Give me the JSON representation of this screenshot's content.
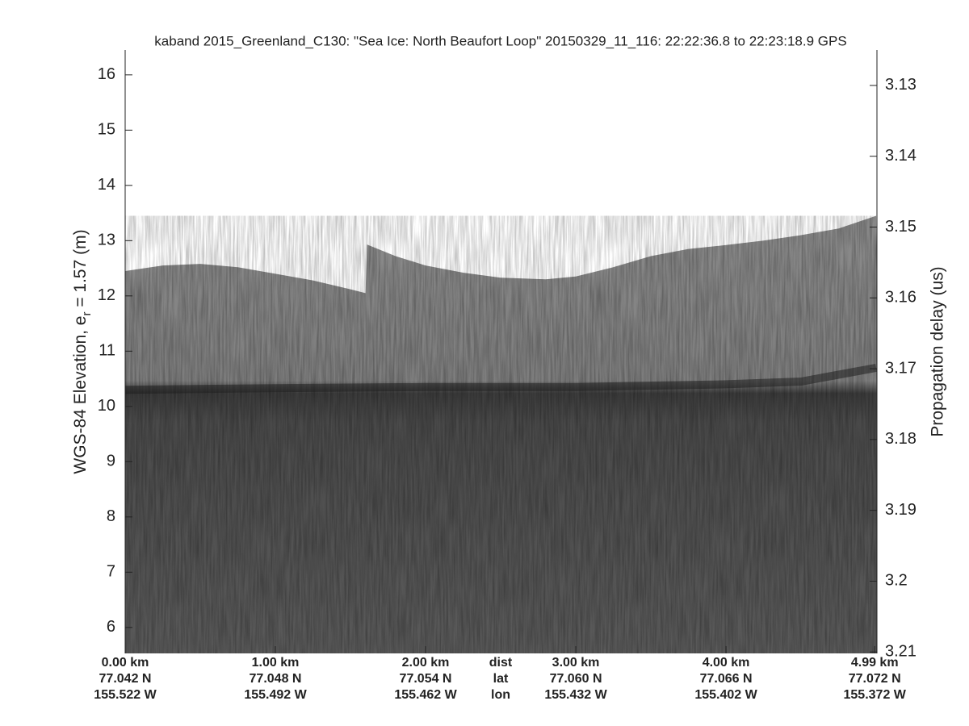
{
  "chart_data": {
    "type": "echogram",
    "title": "kaband 2015_Greenland_C130: \"Sea Ice: North Beaufort Loop\"  20150329_11_116: 22:22:36.8 to 22:23:18.9 GPS",
    "ylabel": {
      "text": "WGS-84 Elevation, e",
      "sub": "r",
      "tail": " = 1.57 (m)"
    },
    "y2label": "Propagation delay (us)",
    "xlim": [
      0,
      5.005
    ],
    "ylim": [
      5.53,
      16.45
    ],
    "y2lim": [
      3.2102,
      3.125
    ],
    "yticks": [
      6,
      7,
      8,
      9,
      10,
      11,
      12,
      13,
      14,
      15,
      16
    ],
    "y2ticks": [
      3.13,
      3.14,
      3.15,
      3.16,
      3.17,
      3.18,
      3.19,
      3.2,
      3.21
    ],
    "xticks": [
      {
        "value": 0,
        "label": "0.00 km"
      },
      {
        "value": 1,
        "label": "1.00 km"
      },
      {
        "value": 2,
        "label": "2.00 km"
      },
      {
        "value": 3,
        "label": "3.00 km"
      },
      {
        "value": 4,
        "label": "4.00 km"
      },
      {
        "value": 4.99,
        "label": "4.99 km"
      }
    ],
    "lat_labels": [
      "77.042 N",
      "77.048 N",
      "77.054 N",
      "77.060 N",
      "77.066 N",
      "77.072 N"
    ],
    "lon_labels": [
      "155.522 W",
      "155.492 W",
      "155.462 W",
      "155.432 W",
      "155.402 W",
      "155.372 W"
    ],
    "row_labels": [
      "dist",
      "lat",
      "lon"
    ],
    "surface": {
      "x": [
        0,
        0.25,
        0.5,
        0.75,
        1.0,
        1.25,
        1.5,
        1.6,
        1.61,
        1.8,
        2.0,
        2.25,
        2.5,
        2.8,
        3.0,
        3.25,
        3.5,
        3.75,
        4.0,
        4.25,
        4.5,
        4.75,
        5.0
      ],
      "values": [
        12.45,
        12.55,
        12.58,
        12.52,
        12.4,
        12.28,
        12.12,
        12.05,
        12.93,
        12.72,
        12.55,
        12.42,
        12.33,
        12.3,
        12.35,
        12.52,
        12.72,
        12.85,
        12.92,
        13.0,
        13.1,
        13.22,
        13.45
      ]
    },
    "layer": {
      "x": [
        0,
        1,
        2,
        3,
        4,
        4.5,
        5.0
      ],
      "values": [
        10.3,
        10.33,
        10.35,
        10.35,
        10.4,
        10.45,
        10.7
      ]
    }
  }
}
